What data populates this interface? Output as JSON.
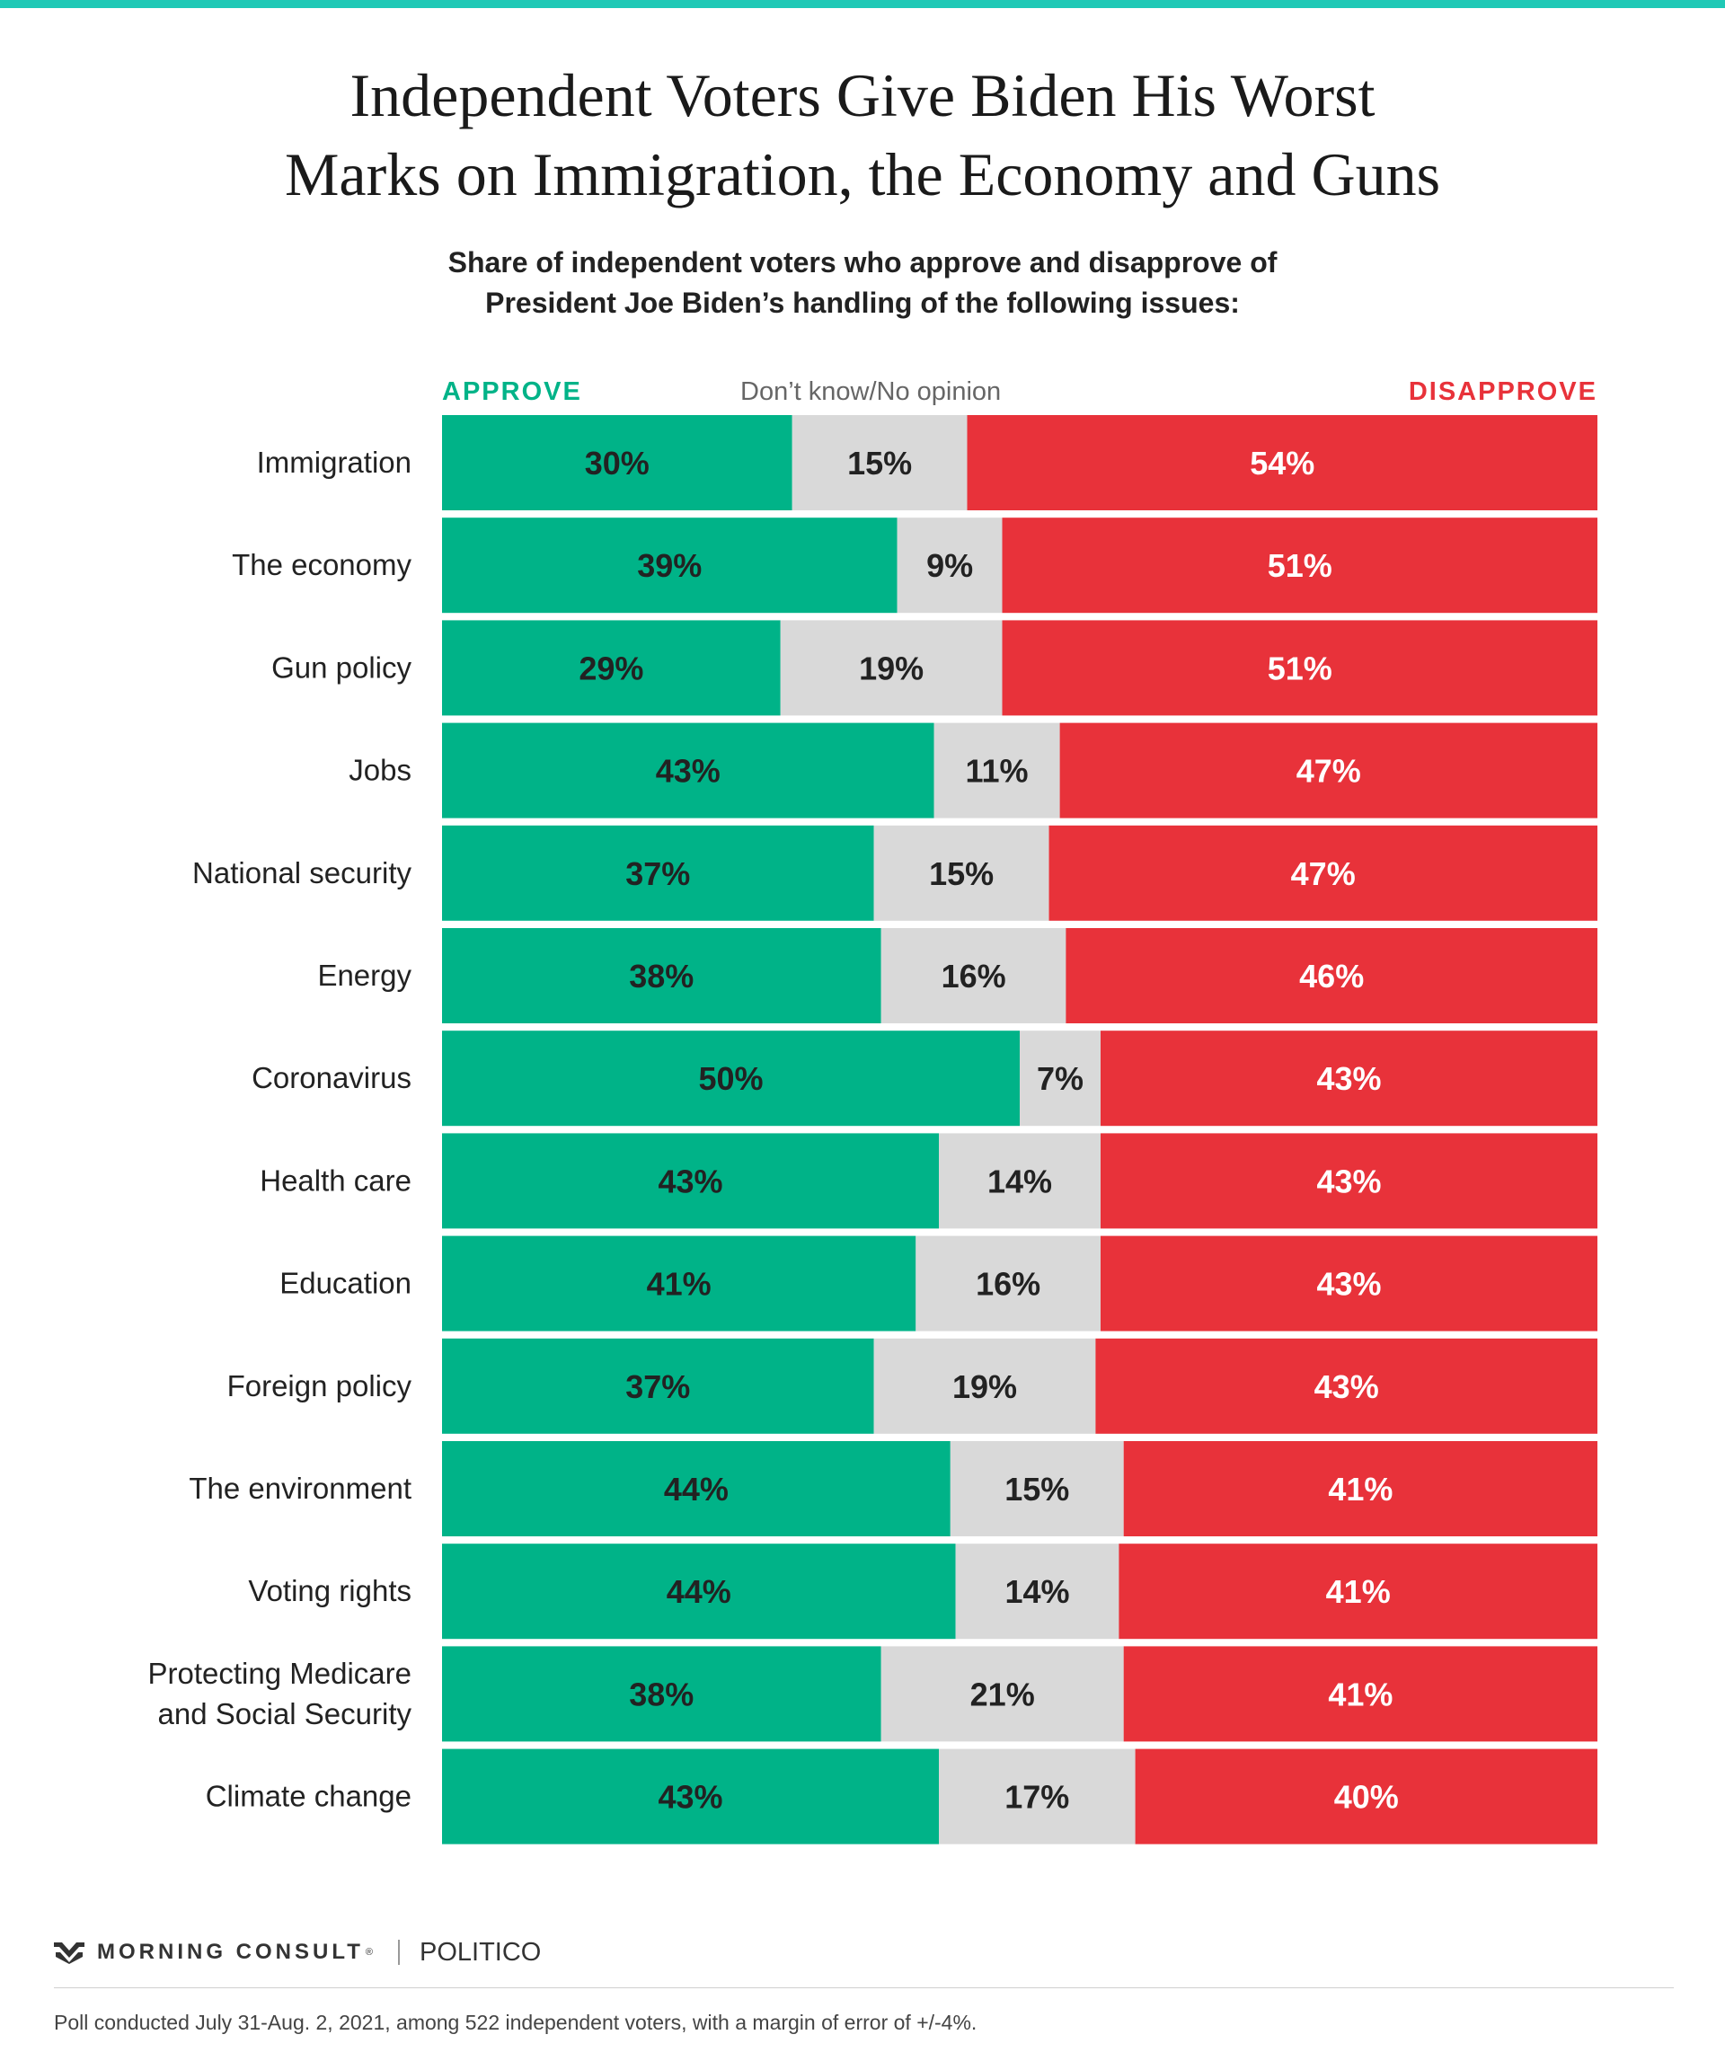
{
  "header": {
    "title_line1": "Independent Voters Give Biden His Worst",
    "title_line2": "Marks on Immigration, the Economy and Guns",
    "subtitle_line1": "Share of independent voters who approve and disapprove of",
    "subtitle_line2": "President Joe Biden’s handling of the following issues:"
  },
  "legend": {
    "approve": "APPROVE",
    "neutral": "Don’t know/No opinion",
    "disapprove": "DISAPPROVE"
  },
  "colors": {
    "approve": "#00b388",
    "neutral": "#d9d9d9",
    "disapprove": "#e8323a",
    "accent": "#1fc9b6"
  },
  "chart_data": {
    "type": "bar",
    "orientation": "horizontal",
    "stacked": true,
    "categories": [
      "Immigration",
      "The economy",
      "Gun policy",
      "Jobs",
      "National security",
      "Energy",
      "Coronavirus",
      "Health care",
      "Education",
      "Foreign policy",
      "The environment",
      "Voting rights",
      "Protecting Medicare and Social Security",
      "Climate change"
    ],
    "series": [
      {
        "name": "APPROVE",
        "values": [
          30,
          39,
          29,
          43,
          37,
          38,
          50,
          43,
          41,
          37,
          44,
          44,
          38,
          43
        ]
      },
      {
        "name": "Don’t know/No opinion",
        "values": [
          15,
          9,
          19,
          11,
          15,
          16,
          7,
          14,
          16,
          19,
          15,
          14,
          21,
          17
        ]
      },
      {
        "name": "DISAPPROVE",
        "values": [
          54,
          51,
          51,
          47,
          47,
          46,
          43,
          43,
          43,
          43,
          41,
          41,
          41,
          40
        ]
      }
    ],
    "value_suffix": "%",
    "xlim": [
      0,
      100
    ],
    "legend_position": "top"
  },
  "footer": {
    "brand": "MORNING CONSULT",
    "brand_mark": "®",
    "partner": "POLITICO",
    "note": "Poll conducted July 31-Aug. 2, 2021, among 522 independent voters, with a margin of error of +/-4%."
  }
}
